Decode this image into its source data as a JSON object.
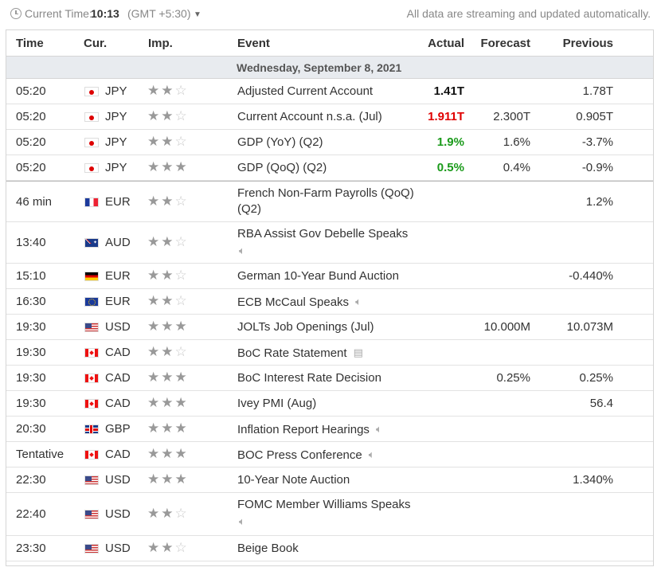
{
  "topbar": {
    "current_time_label": "Current Time:",
    "current_time_value": "10:13",
    "timezone": "(GMT +5:30)",
    "stream_note": "All data are streaming and updated automatically."
  },
  "columns": {
    "time": "Time",
    "currency": "Cur.",
    "importance": "Imp.",
    "event": "Event",
    "actual": "Actual",
    "forecast": "Forecast",
    "previous": "Previous"
  },
  "day_header": "Wednesday, September 8, 2021",
  "colors": {
    "actual_red": "#e00000",
    "actual_green": "#1a9a1a",
    "star_full": "#999999",
    "star_empty": "#c8c8c8"
  },
  "rows": [
    {
      "time": "05:20",
      "flag": "jp",
      "currency": "JPY",
      "importance": 2,
      "event": "Adjusted Current Account",
      "event_icon": "",
      "actual": "1.41T",
      "actual_color": "black",
      "forecast": "",
      "previous": "1.78T"
    },
    {
      "time": "05:20",
      "flag": "jp",
      "currency": "JPY",
      "importance": 2,
      "event": "Current Account n.s.a. (Jul)",
      "event_icon": "",
      "actual": "1.911T",
      "actual_color": "red",
      "forecast": "2.300T",
      "previous": "0.905T"
    },
    {
      "time": "05:20",
      "flag": "jp",
      "currency": "JPY",
      "importance": 2,
      "event": "GDP (YoY) (Q2)",
      "event_icon": "",
      "actual": "1.9%",
      "actual_color": "green",
      "forecast": "1.6%",
      "previous": "-3.7%"
    },
    {
      "time": "05:20",
      "flag": "jp",
      "currency": "JPY",
      "importance": 3,
      "event": "GDP (QoQ) (Q2)",
      "event_icon": "",
      "actual": "0.5%",
      "actual_color": "green",
      "forecast": "0.4%",
      "previous": "-0.9%"
    },
    {
      "time": "46 min",
      "flag": "fr",
      "currency": "EUR",
      "importance": 2,
      "event": "French Non-Farm Payrolls (QoQ) (Q2)",
      "event_icon": "",
      "actual": "",
      "actual_color": "black",
      "forecast": "",
      "previous": "1.2%"
    },
    {
      "time": "13:40",
      "flag": "au",
      "currency": "AUD",
      "importance": 2,
      "event": "RBA Assist Gov Debelle Speaks",
      "event_icon": "speaker-icon",
      "actual": "",
      "actual_color": "black",
      "forecast": "",
      "previous": ""
    },
    {
      "time": "15:10",
      "flag": "de",
      "currency": "EUR",
      "importance": 2,
      "event": "German 10-Year Bund Auction",
      "event_icon": "",
      "actual": "",
      "actual_color": "black",
      "forecast": "",
      "previous": "-0.440%"
    },
    {
      "time": "16:30",
      "flag": "eu",
      "currency": "EUR",
      "importance": 2,
      "event": "ECB McCaul Speaks",
      "event_icon": "speaker-icon",
      "actual": "",
      "actual_color": "black",
      "forecast": "",
      "previous": ""
    },
    {
      "time": "19:30",
      "flag": "us",
      "currency": "USD",
      "importance": 3,
      "event": "JOLTs Job Openings (Jul)",
      "event_icon": "",
      "actual": "",
      "actual_color": "black",
      "forecast": "10.000M",
      "previous": "10.073M"
    },
    {
      "time": "19:30",
      "flag": "ca",
      "currency": "CAD",
      "importance": 2,
      "event": "BoC Rate Statement",
      "event_icon": "document-icon",
      "actual": "",
      "actual_color": "black",
      "forecast": "",
      "previous": ""
    },
    {
      "time": "19:30",
      "flag": "ca",
      "currency": "CAD",
      "importance": 3,
      "event": "BoC Interest Rate Decision",
      "event_icon": "",
      "actual": "",
      "actual_color": "black",
      "forecast": "0.25%",
      "previous": "0.25%"
    },
    {
      "time": "19:30",
      "flag": "ca",
      "currency": "CAD",
      "importance": 3,
      "event": "Ivey PMI (Aug)",
      "event_icon": "",
      "actual": "",
      "actual_color": "black",
      "forecast": "",
      "previous": "56.4"
    },
    {
      "time": "20:30",
      "flag": "gb",
      "currency": "GBP",
      "importance": 3,
      "event": "Inflation Report Hearings",
      "event_icon": "speaker-icon",
      "actual": "",
      "actual_color": "black",
      "forecast": "",
      "previous": ""
    },
    {
      "time": "Tentative",
      "flag": "ca",
      "currency": "CAD",
      "importance": 3,
      "event": "BOC Press Conference",
      "event_icon": "speaker-icon",
      "actual": "",
      "actual_color": "black",
      "forecast": "",
      "previous": ""
    },
    {
      "time": "22:30",
      "flag": "us",
      "currency": "USD",
      "importance": 3,
      "event": "10-Year Note Auction",
      "event_icon": "",
      "actual": "",
      "actual_color": "black",
      "forecast": "",
      "previous": "1.340%"
    },
    {
      "time": "22:40",
      "flag": "us",
      "currency": "USD",
      "importance": 2,
      "event": "FOMC Member Williams Speaks",
      "event_icon": "speaker-icon",
      "actual": "",
      "actual_color": "black",
      "forecast": "",
      "previous": ""
    },
    {
      "time": "23:30",
      "flag": "us",
      "currency": "USD",
      "importance": 2,
      "event": "Beige Book",
      "event_icon": "",
      "actual": "",
      "actual_color": "black",
      "forecast": "",
      "previous": ""
    }
  ]
}
